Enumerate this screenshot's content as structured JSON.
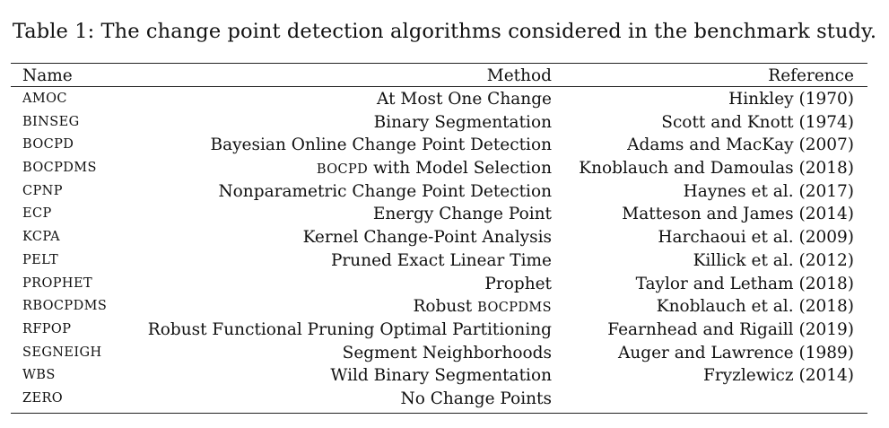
{
  "caption": "Table 1: The change point detection algorithms considered in the benchmark study.",
  "table": {
    "headers": {
      "name": "Name",
      "method": "Method",
      "reference": "Reference"
    },
    "rows": [
      {
        "name": "AMOC",
        "method_prefix": "",
        "method": "At Most One Change",
        "reference": "Hinkley (1970)"
      },
      {
        "name": "BINSEG",
        "method_prefix": "",
        "method": "Binary Segmentation",
        "reference": "Scott and Knott (1974)"
      },
      {
        "name": "BOCPD",
        "method_prefix": "",
        "method": "Bayesian Online Change Point Detection",
        "reference": "Adams and MacKay (2007)"
      },
      {
        "name": "BOCPDMS",
        "method_prefix": "BOCPD",
        "method": " with Model Selection",
        "reference": "Knoblauch and Damoulas (2018)"
      },
      {
        "name": "CPNP",
        "method_prefix": "",
        "method": "Nonparametric Change Point Detection",
        "reference": "Haynes et al. (2017)"
      },
      {
        "name": "ECP",
        "method_prefix": "",
        "method": "Energy Change Point",
        "reference": "Matteson and James (2014)"
      },
      {
        "name": "KCPA",
        "method_prefix": "",
        "method": "Kernel Change-Point Analysis",
        "reference": "Harchaoui et al. (2009)"
      },
      {
        "name": "PELT",
        "method_prefix": "",
        "method": "Pruned Exact Linear Time",
        "reference": "Killick et al. (2012)"
      },
      {
        "name": "PROPHET",
        "method_prefix": "",
        "method": "Prophet",
        "reference": "Taylor and Letham (2018)"
      },
      {
        "name": "RBOCPDMS",
        "method_prefix": "",
        "method": "Robust BOCPDMS",
        "reference": "Knoblauch et al. (2018)"
      },
      {
        "name": "RFPOP",
        "method_prefix": "",
        "method": "Robust Functional Pruning Optimal Partitioning",
        "reference": "Fearnhead and Rigaill (2019)"
      },
      {
        "name": "SEGNEIGH",
        "method_prefix": "",
        "method": "Segment Neighborhoods",
        "reference": "Auger and Lawrence (1989)"
      },
      {
        "name": "WBS",
        "method_prefix": "",
        "method": "Wild Binary Segmentation",
        "reference": "Fryzlewicz (2014)"
      },
      {
        "name": "ZERO",
        "method_prefix": "",
        "method": "No Change Points",
        "reference": ""
      }
    ]
  }
}
